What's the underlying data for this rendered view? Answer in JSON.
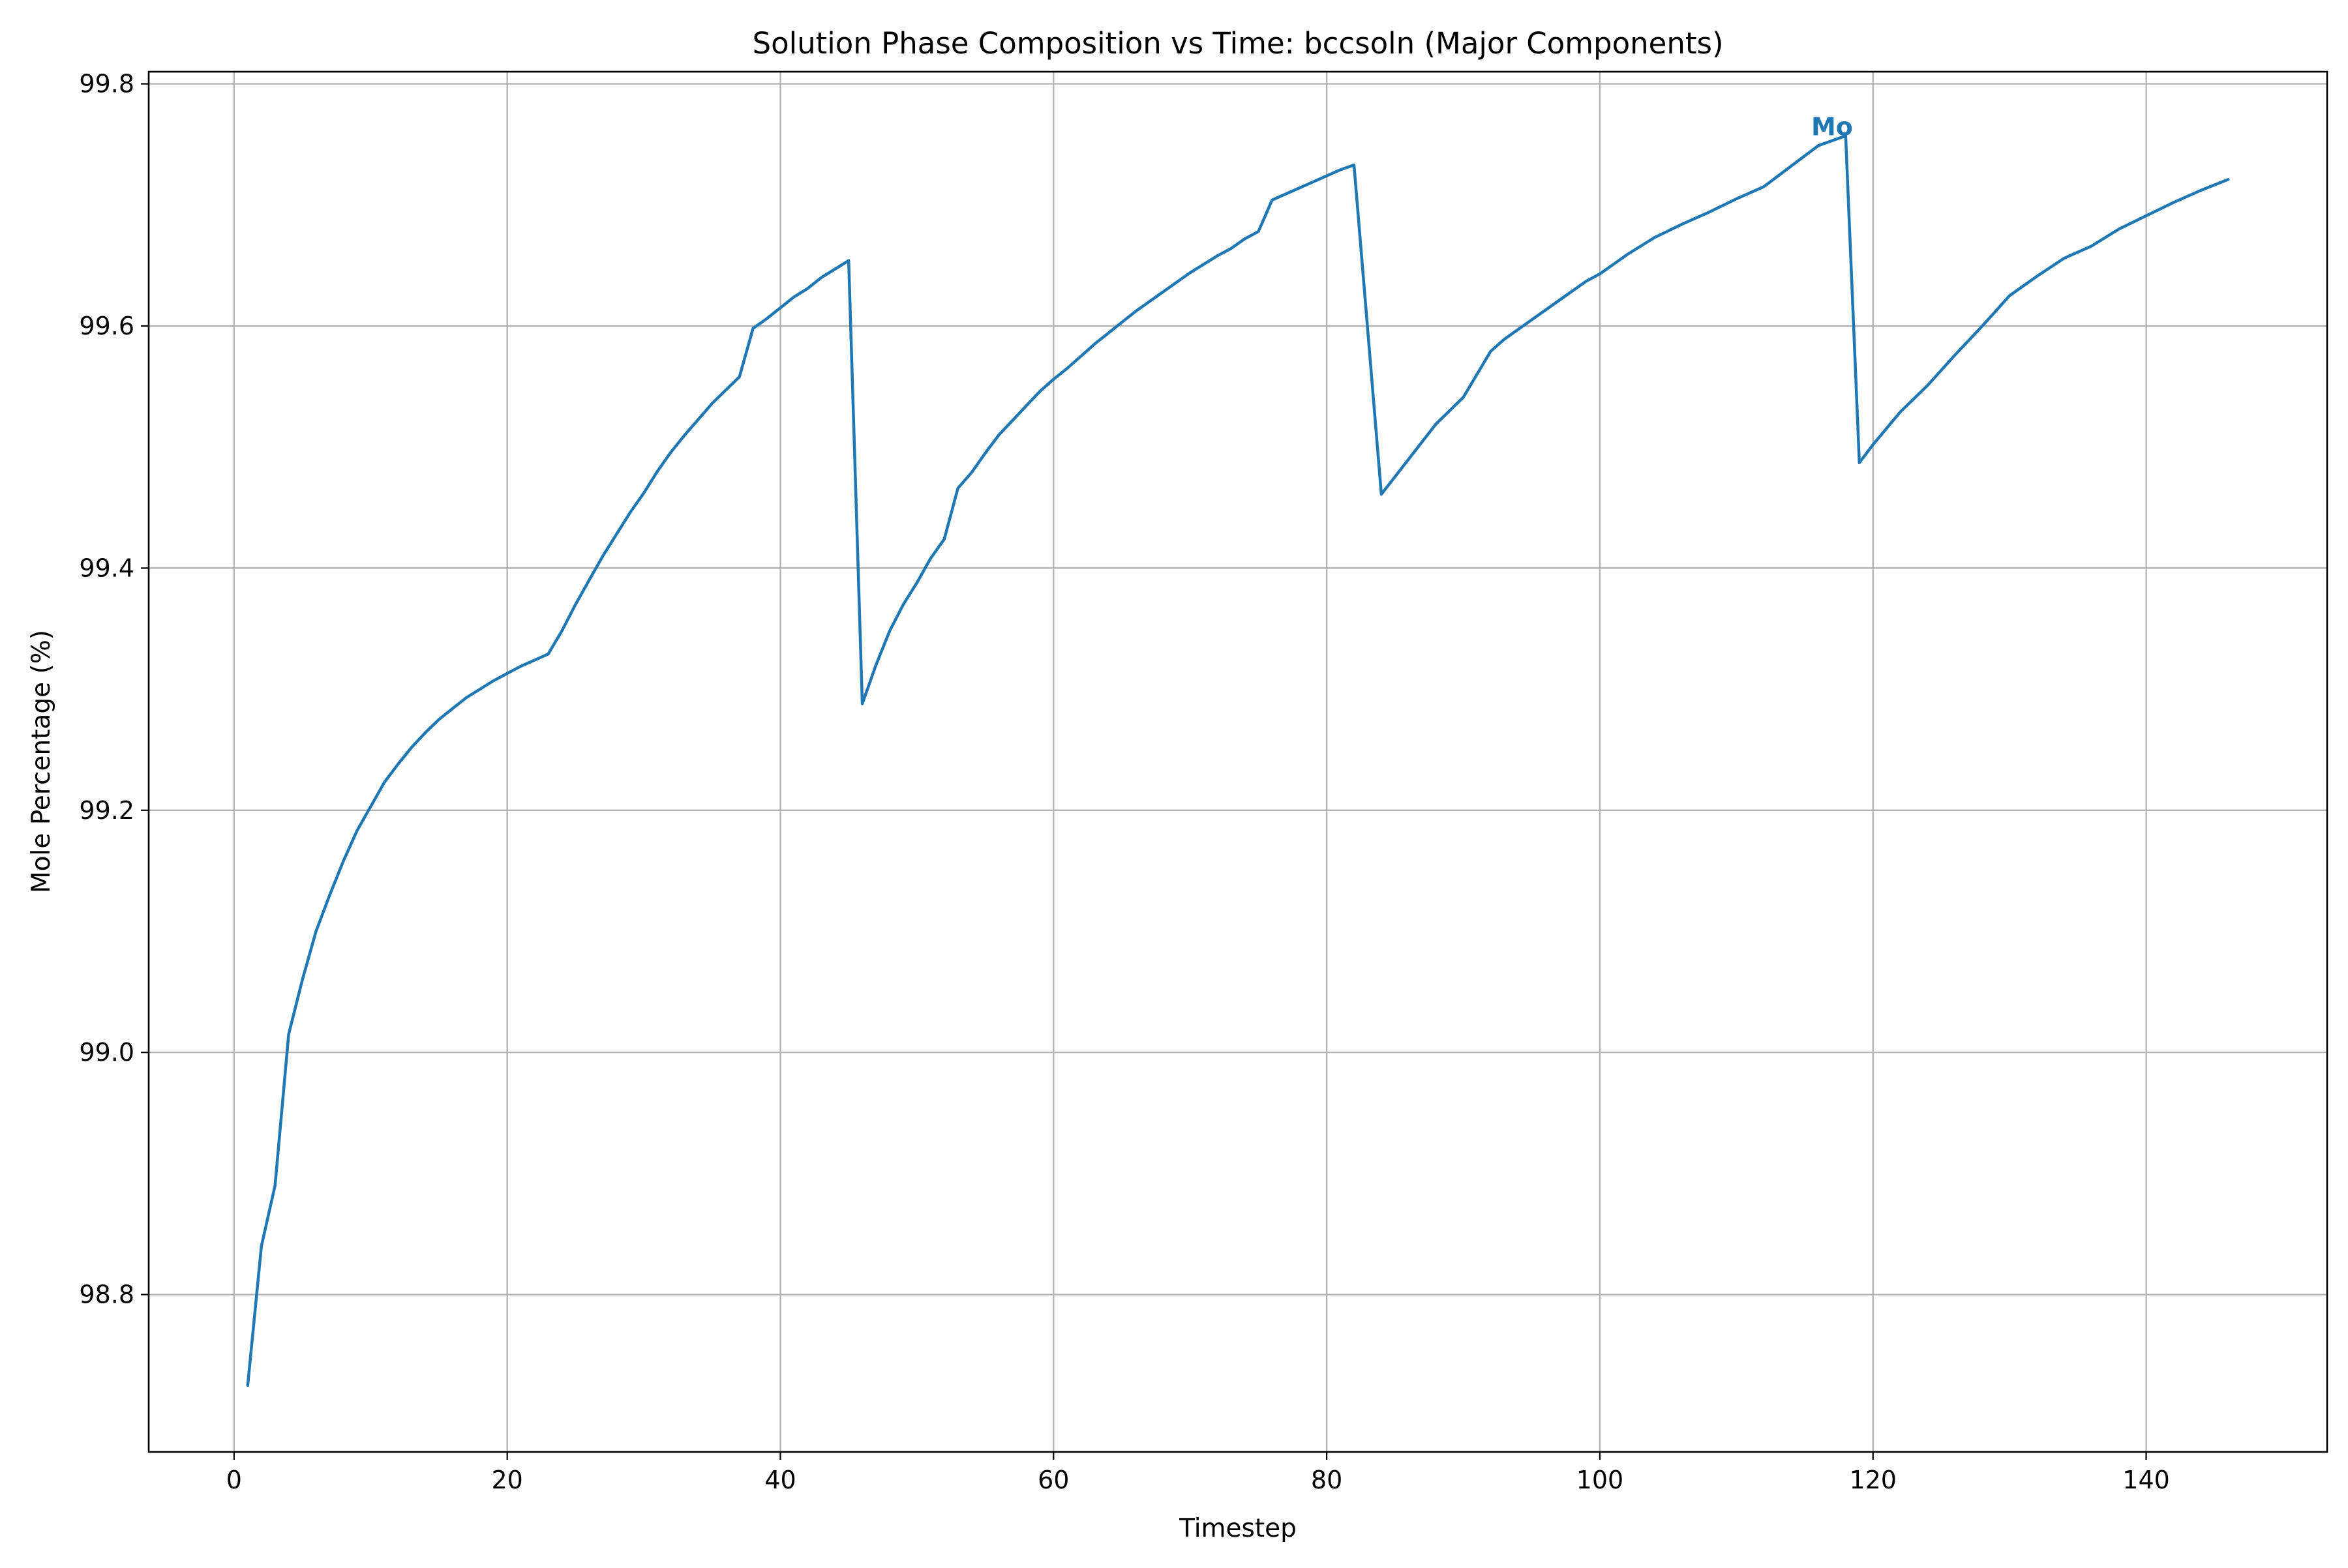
{
  "chart_data": {
    "type": "line",
    "title": "Solution Phase Composition vs Time: bccsoln (Major Components)",
    "xlabel": "Timestep",
    "ylabel": "Mole Percentage (%)",
    "xlim": [
      -6.25,
      153.25
    ],
    "ylim": [
      98.67,
      99.81
    ],
    "xticks": [
      0,
      20,
      40,
      60,
      80,
      100,
      120,
      140
    ],
    "yticks": [
      98.8,
      99.0,
      99.2,
      99.4,
      99.6,
      99.8
    ],
    "xtick_labels": [
      "0",
      "20",
      "40",
      "60",
      "80",
      "100",
      "120",
      "140"
    ],
    "ytick_labels": [
      "98.8",
      "99.0",
      "99.2",
      "99.4",
      "99.6",
      "99.8"
    ],
    "grid": true,
    "series": [
      {
        "name": "Mo",
        "color": "#1f77b4",
        "x": [
          1,
          2,
          3,
          4,
          5,
          6,
          7,
          8,
          9,
          10,
          11,
          12,
          13,
          14,
          15,
          16,
          17,
          18,
          19,
          20,
          21,
          22,
          23,
          24,
          25,
          26,
          27,
          28,
          29,
          30,
          31,
          32,
          33,
          34,
          35,
          36,
          37,
          38,
          39,
          40,
          41,
          42,
          43,
          44,
          45,
          46,
          47,
          48,
          49,
          50,
          51,
          52,
          53,
          54,
          55,
          56,
          57,
          58,
          59,
          60,
          61,
          62,
          63,
          64,
          65,
          66,
          67,
          68,
          69,
          70,
          71,
          72,
          73,
          74,
          75,
          76,
          77,
          78,
          79,
          80,
          81,
          82,
          84,
          86,
          88,
          90,
          92,
          93,
          95,
          97,
          99,
          100,
          101,
          102,
          104,
          106,
          108,
          110,
          112,
          114,
          116,
          118,
          119,
          120,
          122,
          124,
          126,
          128,
          130,
          132,
          134,
          136,
          138,
          140,
          142,
          144,
          146
        ],
        "values": [
          98.725,
          98.84,
          98.89,
          99.015,
          99.06,
          99.1,
          99.13,
          99.158,
          99.183,
          99.203,
          99.223,
          99.238,
          99.252,
          99.264,
          99.275,
          99.284,
          99.293,
          99.3,
          99.307,
          99.313,
          99.319,
          99.324,
          99.329,
          99.348,
          99.37,
          99.39,
          99.41,
          99.428,
          99.446,
          99.462,
          99.48,
          99.496,
          99.51,
          99.523,
          99.536,
          99.547,
          99.558,
          99.598,
          99.606,
          99.615,
          99.624,
          99.631,
          99.64,
          99.647,
          99.654,
          99.288,
          99.32,
          99.348,
          99.37,
          99.388,
          99.408,
          99.424,
          99.466,
          99.479,
          99.495,
          99.51,
          99.522,
          99.534,
          99.546,
          99.556,
          99.565,
          99.575,
          99.585,
          99.594,
          99.603,
          99.612,
          99.62,
          99.628,
          99.636,
          99.644,
          99.651,
          99.658,
          99.664,
          99.672,
          99.678,
          99.704,
          99.709,
          99.714,
          99.719,
          99.724,
          99.729,
          99.733,
          99.461,
          99.49,
          99.519,
          99.541,
          99.579,
          99.589,
          99.605,
          99.621,
          99.637,
          99.643,
          99.651,
          99.659,
          99.673,
          99.684,
          99.694,
          99.705,
          99.715,
          99.732,
          99.749,
          99.757,
          99.487,
          99.502,
          99.529,
          99.551,
          99.576,
          99.6,
          99.625,
          99.641,
          99.656,
          99.666,
          99.68,
          99.691,
          99.702,
          99.712,
          99.721
        ]
      }
    ],
    "annotations": [
      {
        "text": "Mo",
        "x": 117,
        "y": 99.765,
        "color": "#1f77b4"
      }
    ]
  }
}
